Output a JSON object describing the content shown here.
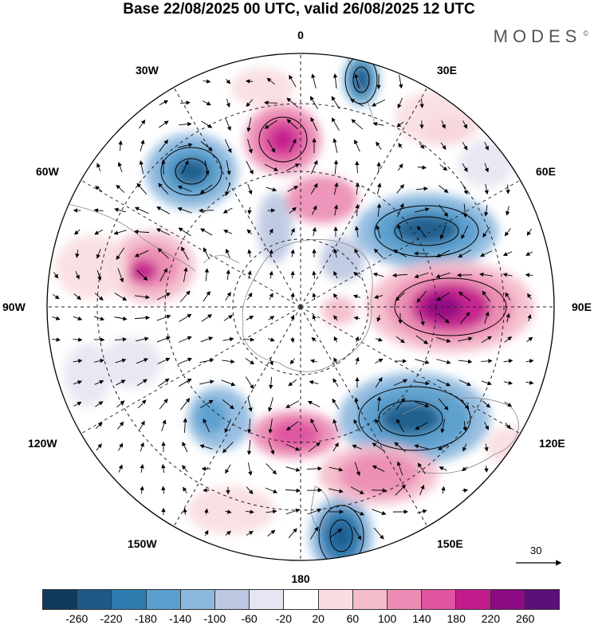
{
  "title": "Base 22/08/2025 00 UTC, valid 26/08/2025 12 UTC",
  "brand": "MODES",
  "brand_mark": "©",
  "map": {
    "projection": "south-polar-stereographic",
    "meridian_labels": {
      "top": "0",
      "top_left": "30W",
      "top_right": "30E",
      "upper_left": "60W",
      "upper_right": "60E",
      "left": "90W",
      "right": "90E",
      "lower_left": "120W",
      "lower_right": "120E",
      "bottom_left": "150W",
      "bottom_right": "150E",
      "bottom": "180"
    },
    "wind_reference": {
      "label": "30"
    }
  },
  "colorbar": {
    "ticks": [
      "-260",
      "-220",
      "-180",
      "-140",
      "-100",
      "-60",
      "-20",
      "20",
      "60",
      "100",
      "140",
      "180",
      "220",
      "260"
    ],
    "colors": [
      "#113a5c",
      "#1d5a8a",
      "#2e7bb0",
      "#5a9fce",
      "#8db8de",
      "#bcc8e2",
      "#e6e6f2",
      "#ffffff",
      "#f9dde0",
      "#f4bccb",
      "#ec8cb4",
      "#e054a0",
      "#c21c8c",
      "#8c0a82",
      "#5a0f7a"
    ]
  }
}
